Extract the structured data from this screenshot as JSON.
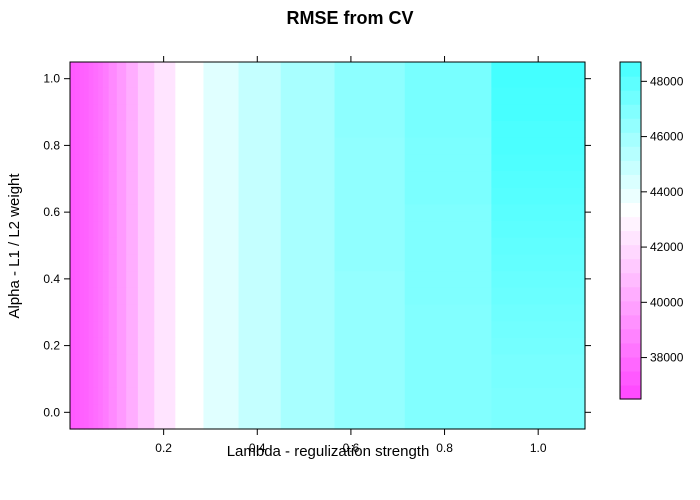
{
  "chart_data": {
    "type": "heatmap",
    "title": "RMSE from CV",
    "xlabel": "Lambda - regulization strength",
    "ylabel": "Alpha - L1 / L2 weight",
    "xlim": [
      0.0,
      1.1
    ],
    "ylim": [
      -0.05,
      1.05
    ],
    "x_ticks": [
      0.2,
      0.4,
      0.6,
      0.8,
      1.0
    ],
    "x_tick_labels": [
      "0.2",
      "0.4",
      "0.6",
      "0.8",
      "1.0"
    ],
    "y_ticks": [
      0.0,
      0.2,
      0.4,
      0.6,
      0.8,
      1.0
    ],
    "y_tick_labels": [
      "0.0",
      "0.2",
      "0.4",
      "0.6",
      "0.8",
      "1.0"
    ],
    "x": [
      0.005,
      0.015,
      0.025,
      0.035,
      0.045,
      0.055,
      0.065,
      0.075,
      0.09,
      0.11,
      0.13,
      0.16,
      0.2,
      0.25,
      0.32,
      0.4,
      0.5,
      0.63,
      0.8,
      1.0
    ],
    "y": [
      0.0,
      0.05,
      0.1,
      0.15,
      0.2,
      0.25,
      0.3,
      0.35,
      0.4,
      0.45,
      0.5,
      0.55,
      0.6,
      0.65,
      0.7,
      0.75,
      0.8,
      0.85,
      0.9,
      0.95,
      1.0
    ],
    "colorbar": {
      "range": [
        36500,
        48700
      ],
      "ticks": [
        38000,
        40000,
        42000,
        44000,
        46000,
        48000
      ],
      "tick_labels": [
        "38000",
        "40000",
        "42000",
        "44000",
        "46000",
        "48000"
      ],
      "low_color": "#ff44ff",
      "mid_color": "#ffffff",
      "high_color": "#44ffff",
      "mid_value": 43300
    },
    "z": [
      [
        37300,
        37400,
        37500,
        37600,
        37800,
        38000,
        38200,
        38500,
        39000,
        39600,
        40300,
        41300,
        42300,
        43300,
        44200,
        45000,
        45800,
        46400,
        46900,
        47100
      ],
      [
        37300,
        37400,
        37500,
        37600,
        37800,
        38000,
        38200,
        38500,
        39000,
        39600,
        40300,
        41300,
        42300,
        43300,
        44200,
        45000,
        45800,
        46400,
        46900,
        47100
      ],
      [
        37300,
        37400,
        37500,
        37600,
        37800,
        38000,
        38200,
        38500,
        39000,
        39600,
        40300,
        41300,
        42300,
        43300,
        44200,
        45000,
        45800,
        46400,
        46900,
        47200
      ],
      [
        37300,
        37400,
        37500,
        37600,
        37800,
        38000,
        38200,
        38500,
        39000,
        39600,
        40300,
        41300,
        42300,
        43300,
        44200,
        45000,
        45800,
        46400,
        46900,
        47200
      ],
      [
        37300,
        37400,
        37500,
        37600,
        37800,
        38000,
        38200,
        38500,
        39000,
        39600,
        40300,
        41300,
        42300,
        43300,
        44200,
        45000,
        45800,
        46400,
        46900,
        47300
      ],
      [
        37300,
        37400,
        37500,
        37600,
        37800,
        38000,
        38200,
        38500,
        39000,
        39600,
        40300,
        41300,
        42300,
        43300,
        44200,
        45000,
        45800,
        46400,
        46900,
        47400
      ],
      [
        37300,
        37400,
        37500,
        37600,
        37800,
        38000,
        38200,
        38500,
        39000,
        39600,
        40300,
        41300,
        42300,
        43300,
        44200,
        45000,
        45800,
        46400,
        46900,
        47500
      ],
      [
        37300,
        37400,
        37500,
        37600,
        37800,
        38000,
        38200,
        38500,
        39000,
        39600,
        40300,
        41300,
        42300,
        43300,
        44200,
        45000,
        45800,
        46400,
        47000,
        47600
      ],
      [
        37300,
        37400,
        37500,
        37600,
        37800,
        38000,
        38200,
        38500,
        39000,
        39600,
        40300,
        41300,
        42300,
        43300,
        44200,
        45000,
        45800,
        46400,
        47000,
        47700
      ],
      [
        37300,
        37400,
        37500,
        37600,
        37800,
        38000,
        38200,
        38500,
        39000,
        39600,
        40300,
        41300,
        42300,
        43300,
        44200,
        45000,
        45800,
        46500,
        47000,
        47800
      ],
      [
        37300,
        37400,
        37500,
        37600,
        37800,
        38000,
        38200,
        38500,
        39000,
        39600,
        40300,
        41300,
        42300,
        43300,
        44200,
        45000,
        45800,
        46500,
        47000,
        47900
      ],
      [
        37300,
        37400,
        37500,
        37600,
        37800,
        38000,
        38200,
        38500,
        39000,
        39600,
        40300,
        41300,
        42300,
        43300,
        44200,
        45000,
        45800,
        46500,
        47000,
        48000
      ],
      [
        37300,
        37400,
        37500,
        37600,
        37800,
        38000,
        38200,
        38500,
        39000,
        39600,
        40300,
        41300,
        42300,
        43300,
        44200,
        45000,
        45800,
        46500,
        47000,
        48100
      ],
      [
        37300,
        37400,
        37500,
        37600,
        37800,
        38000,
        38200,
        38500,
        39000,
        39600,
        40300,
        41300,
        42300,
        43300,
        44200,
        45000,
        45800,
        46500,
        47100,
        48200
      ],
      [
        37300,
        37400,
        37500,
        37600,
        37800,
        38000,
        38200,
        38500,
        39000,
        39600,
        40300,
        41300,
        42300,
        43300,
        44200,
        45000,
        45800,
        46500,
        47100,
        48300
      ],
      [
        37300,
        37400,
        37500,
        37600,
        37800,
        38000,
        38200,
        38500,
        39000,
        39600,
        40300,
        41300,
        42300,
        43300,
        44200,
        45000,
        45800,
        46500,
        47100,
        48400
      ],
      [
        37300,
        37400,
        37500,
        37600,
        37800,
        38000,
        38200,
        38500,
        39000,
        39600,
        40300,
        41300,
        42300,
        43300,
        44200,
        45000,
        45800,
        46500,
        47100,
        48500
      ],
      [
        37300,
        37400,
        37500,
        37600,
        37800,
        38000,
        38200,
        38500,
        39000,
        39600,
        40300,
        41300,
        42300,
        43300,
        44200,
        45000,
        45800,
        46600,
        47200,
        48500
      ],
      [
        37300,
        37400,
        37500,
        37600,
        37800,
        38000,
        38200,
        38500,
        39000,
        39600,
        40300,
        41300,
        42300,
        43300,
        44200,
        45000,
        45800,
        46600,
        47200,
        48600
      ],
      [
        37300,
        37400,
        37500,
        37600,
        37800,
        38000,
        38200,
        38500,
        39000,
        39600,
        40300,
        41300,
        42300,
        43300,
        44200,
        45000,
        45800,
        46600,
        47200,
        48600
      ],
      [
        37300,
        37400,
        37500,
        37600,
        37800,
        38000,
        38200,
        38500,
        39000,
        39600,
        40300,
        41300,
        42300,
        43300,
        44200,
        45000,
        45800,
        46600,
        47200,
        48700
      ]
    ]
  }
}
